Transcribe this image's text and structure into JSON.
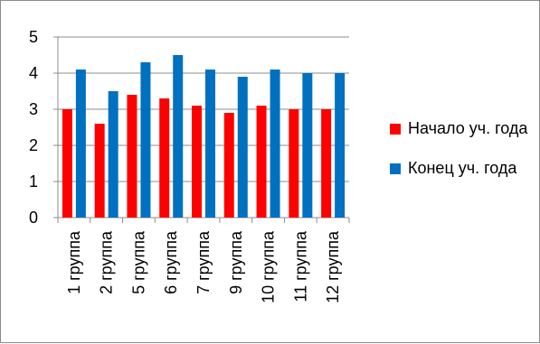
{
  "chart_data": {
    "type": "bar",
    "categories": [
      "1 группа",
      "2 группа",
      "5 группа",
      "6 группа",
      "7 группа",
      "9 группа",
      "10 группа",
      "11 группа",
      "12 группа"
    ],
    "series": [
      {
        "name": "Начало уч. года",
        "color": "#ff0000",
        "values": [
          3.0,
          2.6,
          3.4,
          3.3,
          3.1,
          2.9,
          3.1,
          3.0,
          3.0
        ]
      },
      {
        "name": "Конец уч. года",
        "color": "#0070c0",
        "values": [
          4.1,
          3.5,
          4.3,
          4.5,
          4.1,
          3.9,
          4.1,
          4.0,
          4.0
        ]
      }
    ],
    "yticks": [
      "0",
      "1",
      "2",
      "3",
      "4",
      "5"
    ],
    "ylim": [
      0,
      5
    ],
    "grid": true,
    "legend_position": "right"
  }
}
